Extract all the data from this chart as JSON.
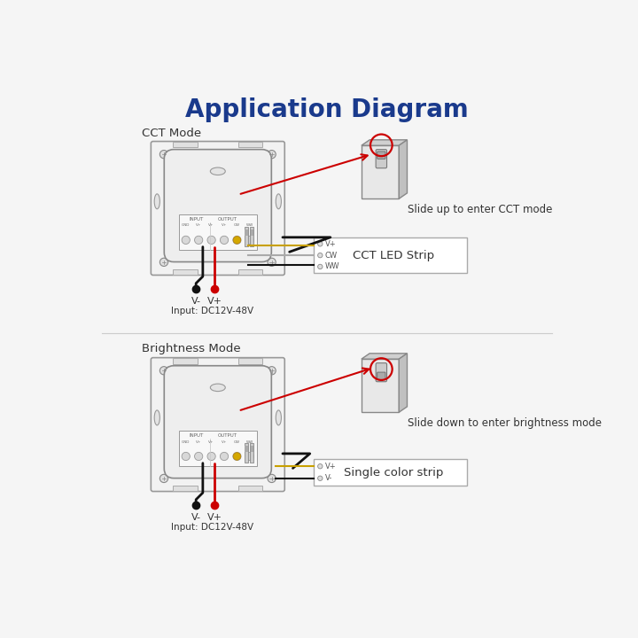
{
  "title": "Application Diagram",
  "title_color": "#1a3a8c",
  "bg_color": "#f5f5f5",
  "section1_label": "CCT Mode",
  "section2_label": "Brightness Mode",
  "slide_up_text": "Slide up to enter CCT mode",
  "slide_down_text": "Slide down to enter brightness mode",
  "cct_strip_label": "CCT LED Strip",
  "single_strip_label": "Single color strip",
  "input_label": "Input: DC12V-48V",
  "vplus": "V+",
  "vminus": "V-",
  "red_color": "#cc0000",
  "black_color": "#111111",
  "yellow_color": "#c8a000",
  "gray_color": "#aaaaaa",
  "edge_color": "#888888",
  "device_face": "#f2f2f2",
  "device_inner": "#e8e8e8",
  "box3d_front": "#e8e8e8",
  "box3d_top": "#d0d0d0",
  "box3d_right": "#c0c0c0",
  "text_color": "#333333"
}
